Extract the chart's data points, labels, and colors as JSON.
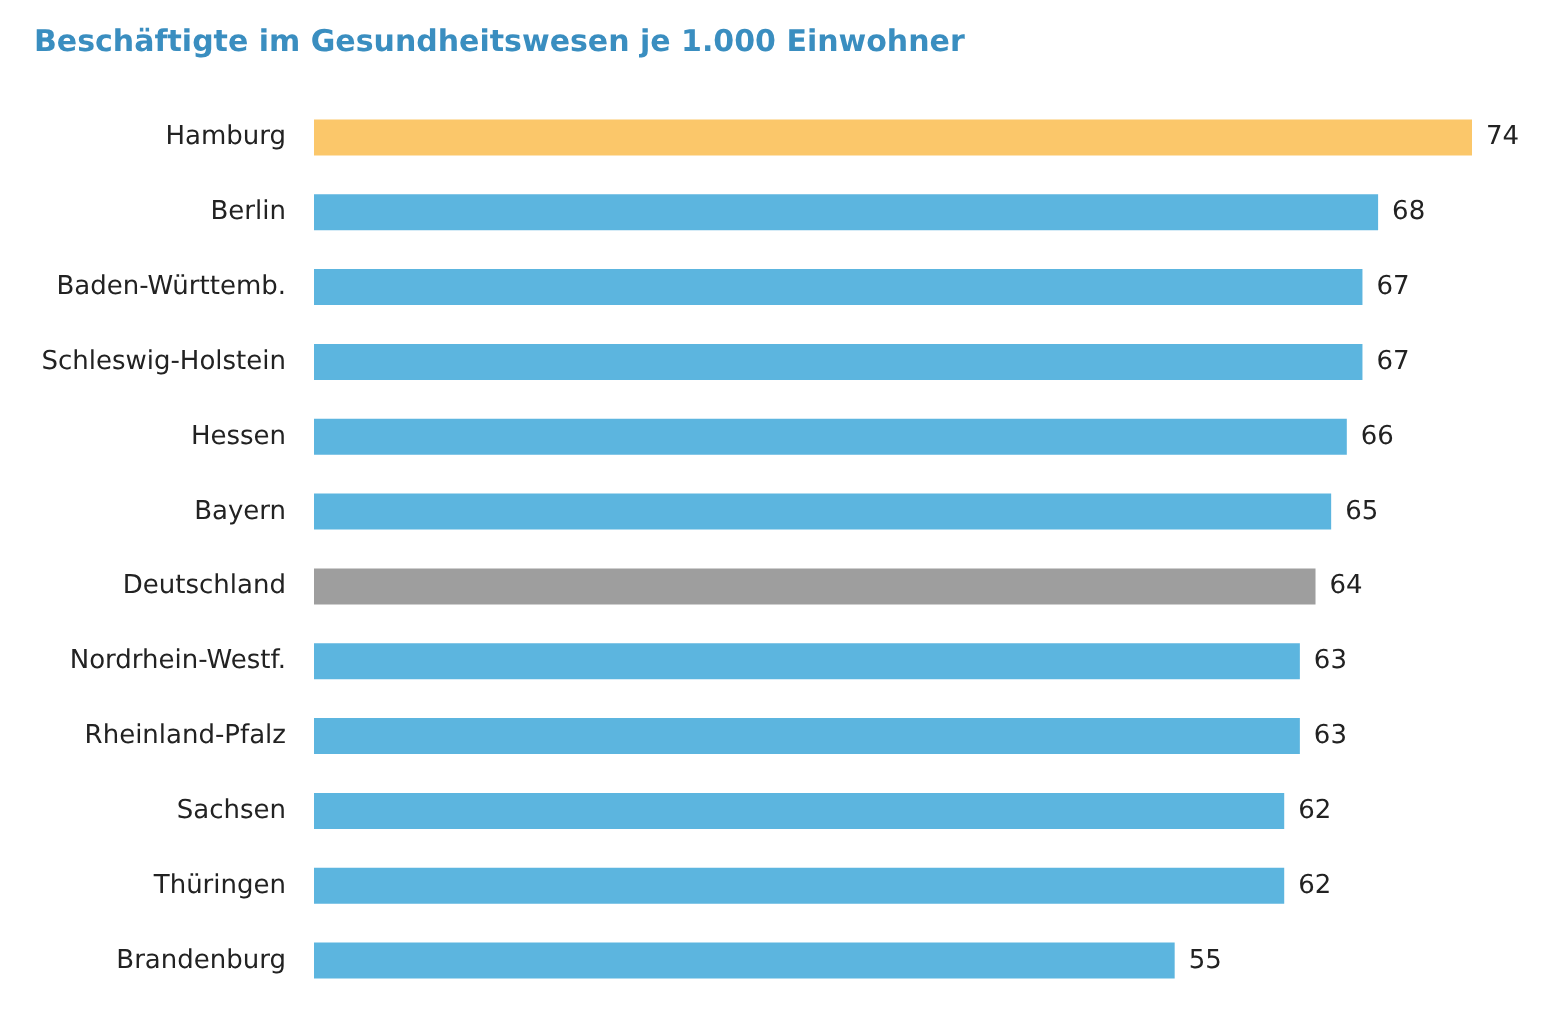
{
  "chart_data": {
    "type": "bar",
    "orientation": "horizontal",
    "title": "Beschäftigte im Gesundheitswesen je 1.000 Einwohner",
    "categories": [
      "Hamburg",
      "Berlin",
      "Baden-Württemb.",
      "Schleswig-Holstein",
      "Hessen",
      "Bayern",
      "Deutschland",
      "Nordrhein-Westf.",
      "Rheinland-Pfalz",
      "Sachsen",
      "Thüringen",
      "Brandenburg"
    ],
    "values": [
      74,
      68,
      67,
      67,
      66,
      65,
      64,
      63,
      63,
      62,
      62,
      55
    ],
    "colors": [
      "#fbc76a",
      "#5cb5df",
      "#5cb5df",
      "#5cb5df",
      "#5cb5df",
      "#5cb5df",
      "#9e9e9e",
      "#5cb5df",
      "#5cb5df",
      "#5cb5df",
      "#5cb5df",
      "#5cb5df"
    ],
    "data_labels": true,
    "grid": false
  }
}
